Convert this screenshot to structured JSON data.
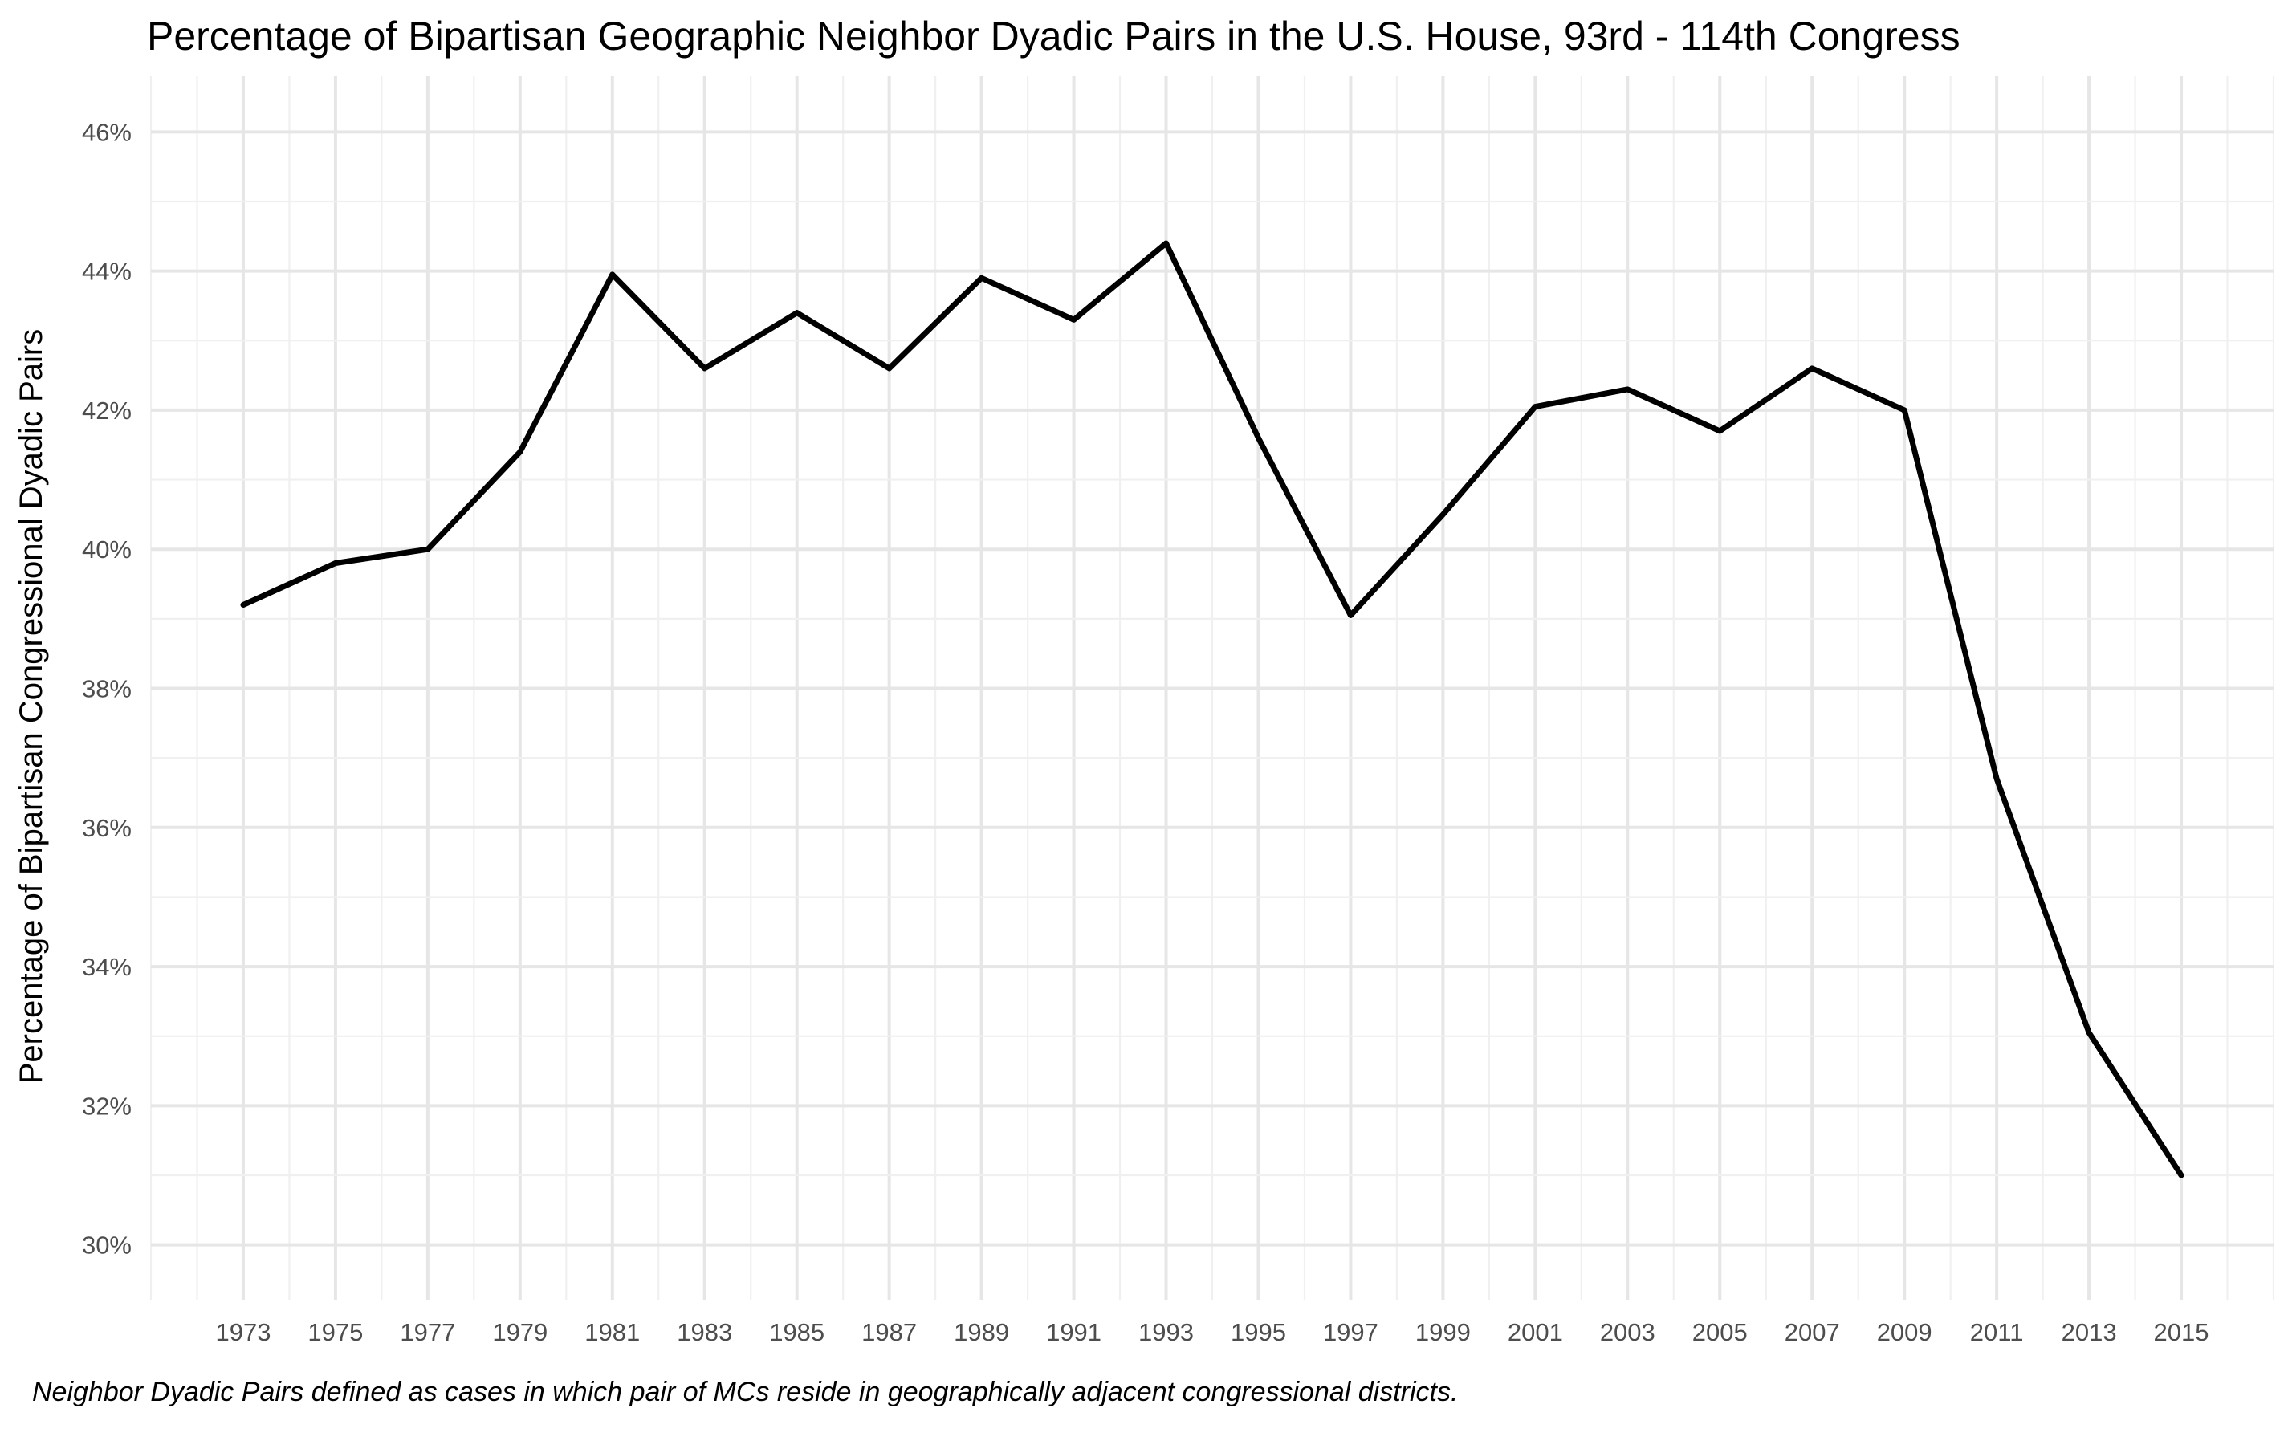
{
  "chart_data": {
    "type": "line",
    "title": "Percentage of Bipartisan Geographic Neighbor Dyadic Pairs in the U.S. House, 93rd - 114th Congress",
    "xlabel": "",
    "ylabel": "Percentage of Bipartisan Congressional Dyadic Pairs",
    "caption": "Neighbor Dyadic Pairs defined as cases in which pair of MCs reside in geographically adjacent congressional districts.",
    "x": [
      1973,
      1975,
      1977,
      1979,
      1981,
      1983,
      1985,
      1987,
      1989,
      1991,
      1993,
      1995,
      1997,
      1999,
      2001,
      2003,
      2005,
      2007,
      2009,
      2011,
      2013,
      2015
    ],
    "series": [
      {
        "values": [
          39.2,
          39.8,
          40.0,
          41.4,
          43.95,
          42.6,
          43.4,
          42.6,
          43.9,
          43.3,
          44.4,
          41.6,
          39.05,
          40.5,
          42.05,
          42.3,
          41.7,
          42.6,
          42.0,
          36.7,
          33.05,
          31.0
        ]
      }
    ],
    "xlim": [
      1971,
      2017
    ],
    "ylim": [
      29.2,
      46.8
    ],
    "x_ticks": [
      1973,
      1975,
      1977,
      1979,
      1981,
      1983,
      1985,
      1987,
      1989,
      1991,
      1993,
      1995,
      1997,
      1999,
      2001,
      2003,
      2005,
      2007,
      2009,
      2011,
      2013,
      2015
    ],
    "x_tick_labels": [
      "1973",
      "1975",
      "1977",
      "1979",
      "1981",
      "1983",
      "1985",
      "1987",
      "1989",
      "1991",
      "1993",
      "1995",
      "1997",
      "1999",
      "2001",
      "2003",
      "2005",
      "2007",
      "2009",
      "2011",
      "2013",
      "2015"
    ],
    "y_ticks": [
      30,
      32,
      34,
      36,
      38,
      40,
      42,
      44,
      46
    ],
    "y_tick_labels": [
      "30%",
      "32%",
      "34%",
      "36%",
      "38%",
      "40%",
      "42%",
      "44%",
      "46%"
    ],
    "grid": true,
    "legend": "none",
    "line_color": "#000000"
  }
}
